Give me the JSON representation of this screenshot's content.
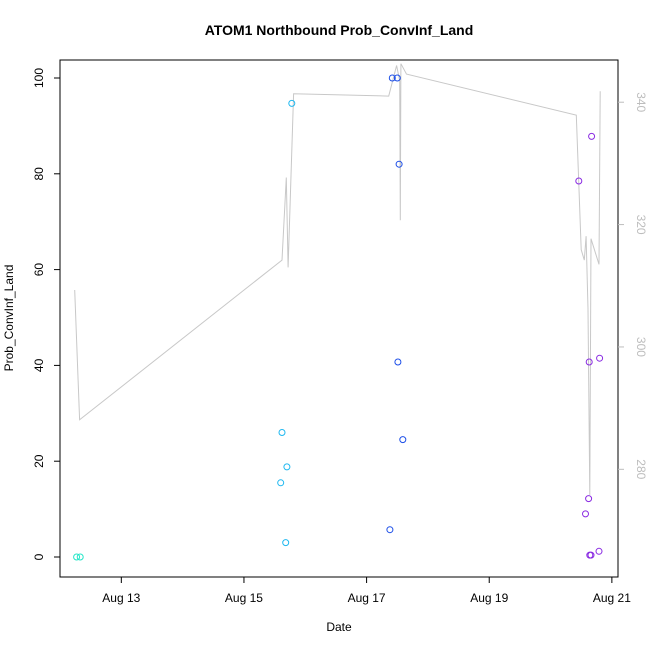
{
  "chart_data": {
    "type": "scatter",
    "title": "ATOM1 Northbound Prob_ConvInf_Land",
    "xlabel": "Date",
    "ylabel": "Prob_ConvInf_Land",
    "x_tick_labels": [
      "Aug 13",
      "Aug 15",
      "Aug 17",
      "Aug 19",
      "Aug 21"
    ],
    "x_tick_days": [
      13,
      15,
      17,
      19,
      21
    ],
    "xlim_days": [
      12.0,
      21.1
    ],
    "ylim": [
      0,
      100
    ],
    "y_ticks": [
      0,
      20,
      40,
      60,
      80,
      100
    ],
    "y_right_ticks": [
      280,
      300,
      320,
      340
    ],
    "y_right_lim": [
      262.4,
      346.9
    ],
    "grid": false,
    "series": [
      {
        "type": "points",
        "points": [
          {
            "x": 12.27,
            "y": 0,
            "color": "#22e6c7"
          },
          {
            "x": 12.33,
            "y": 0,
            "color": "#22e6c7"
          },
          {
            "x": 15.6,
            "y": 15.5,
            "color": "#1fb8f0"
          },
          {
            "x": 15.62,
            "y": 26.0,
            "color": "#1fb8f0"
          },
          {
            "x": 15.68,
            "y": 3.0,
            "color": "#1fb8f0"
          },
          {
            "x": 15.7,
            "y": 18.8,
            "color": "#1fb8f0"
          },
          {
            "x": 15.78,
            "y": 94.7,
            "color": "#1fb8f0"
          },
          {
            "x": 17.38,
            "y": 5.7,
            "color": "#1c4ee8"
          },
          {
            "x": 17.42,
            "y": 100.0,
            "color": "#1c4ee8"
          },
          {
            "x": 17.5,
            "y": 100.0,
            "color": "#1c4ee8"
          },
          {
            "x": 17.51,
            "y": 40.7,
            "color": "#1c4ee8"
          },
          {
            "x": 17.53,
            "y": 82.0,
            "color": "#1c4ee8"
          },
          {
            "x": 17.59,
            "y": 24.5,
            "color": "#1c4ee8"
          },
          {
            "x": 20.46,
            "y": 78.5,
            "color": "#8a2be2"
          },
          {
            "x": 20.57,
            "y": 9.0,
            "color": "#8a2be2"
          },
          {
            "x": 20.62,
            "y": 12.2,
            "color": "#8a2be2"
          },
          {
            "x": 20.63,
            "y": 40.7,
            "color": "#8a2be2"
          },
          {
            "x": 20.64,
            "y": 0.4,
            "color": "#8a2be2"
          },
          {
            "x": 20.66,
            "y": 0.4,
            "color": "#8a2be2"
          },
          {
            "x": 20.67,
            "y": 87.8,
            "color": "#8a2be2"
          },
          {
            "x": 20.79,
            "y": 1.2,
            "color": "#8a2be2"
          },
          {
            "x": 20.8,
            "y": 41.5,
            "color": "#8a2be2"
          }
        ]
      },
      {
        "type": "line",
        "axis": "right",
        "color": "#c8c8c8",
        "points": [
          {
            "x": 12.24,
            "y": 309.3
          },
          {
            "x": 12.32,
            "y": 288.1
          },
          {
            "x": 15.62,
            "y": 314.2
          },
          {
            "x": 15.69,
            "y": 327.7
          },
          {
            "x": 15.72,
            "y": 313.0
          },
          {
            "x": 15.81,
            "y": 341.4
          },
          {
            "x": 17.36,
            "y": 341.0
          },
          {
            "x": 17.49,
            "y": 346.0
          },
          {
            "x": 17.54,
            "y": 343.5
          },
          {
            "x": 17.55,
            "y": 320.7
          },
          {
            "x": 17.56,
            "y": 346.3
          },
          {
            "x": 17.65,
            "y": 344.6
          },
          {
            "x": 20.42,
            "y": 337.9
          },
          {
            "x": 20.5,
            "y": 315.9
          },
          {
            "x": 20.55,
            "y": 314.2
          },
          {
            "x": 20.58,
            "y": 318.1
          },
          {
            "x": 20.61,
            "y": 306.2
          },
          {
            "x": 20.64,
            "y": 275.8
          },
          {
            "x": 20.66,
            "y": 317.7
          },
          {
            "x": 20.79,
            "y": 313.5
          },
          {
            "x": 20.81,
            "y": 341.8
          }
        ]
      }
    ]
  }
}
